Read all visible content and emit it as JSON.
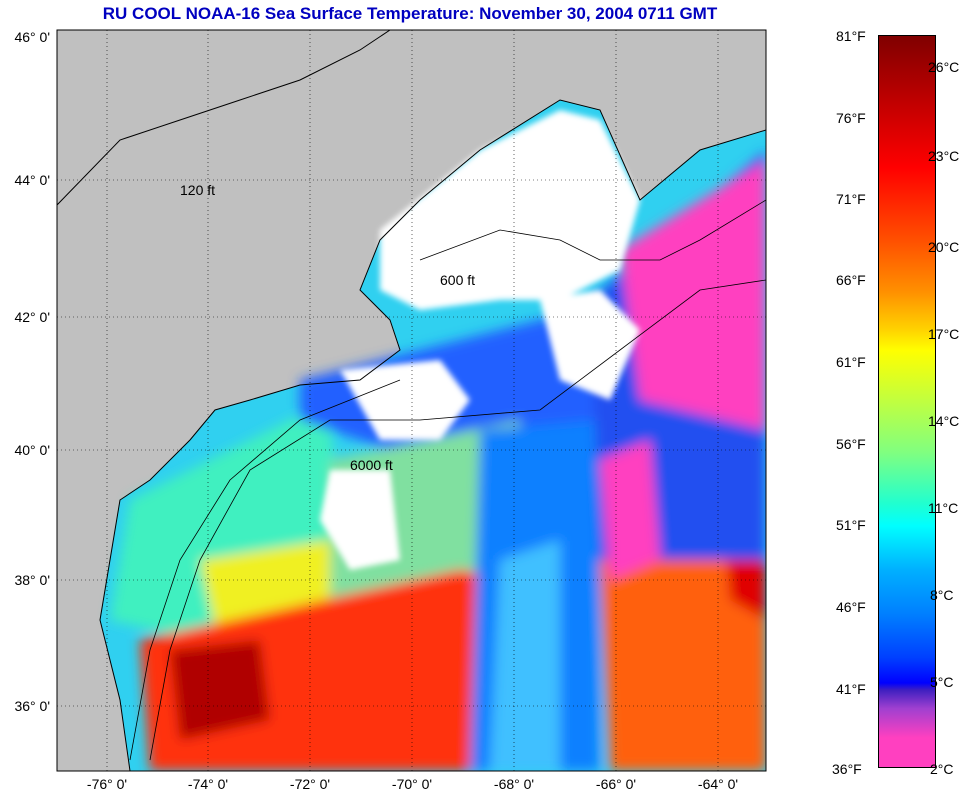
{
  "title": "RU COOL  NOAA-16  Sea Surface Temperature:  November 30, 2004 0711 GMT",
  "map": {
    "lon_ticks": [
      "-76° 0'",
      "-74° 0'",
      "-72° 0'",
      "-70° 0'",
      "-68° 0'",
      "-66° 0'",
      "-64° 0'"
    ],
    "lat_ticks": [
      "46° 0'",
      "44° 0'",
      "42° 0'",
      "40° 0'",
      "38° 0'",
      "36° 0'"
    ],
    "contour_labels": [
      "120 ft",
      "600 ft",
      "6000 ft"
    ],
    "colors": {
      "land": "#c0c0c0",
      "cloud": "#ffffff"
    }
  },
  "colorbar": {
    "fahrenheit": [
      "81°F",
      "76°F",
      "71°F",
      "66°F",
      "61°F",
      "56°F",
      "51°F",
      "46°F",
      "41°F",
      "36°F"
    ],
    "celsius": [
      "26°C",
      "23°C",
      "20°C",
      "17°C",
      "14°C",
      "11°C",
      "8°C",
      "5°C",
      "2°C"
    ]
  }
}
